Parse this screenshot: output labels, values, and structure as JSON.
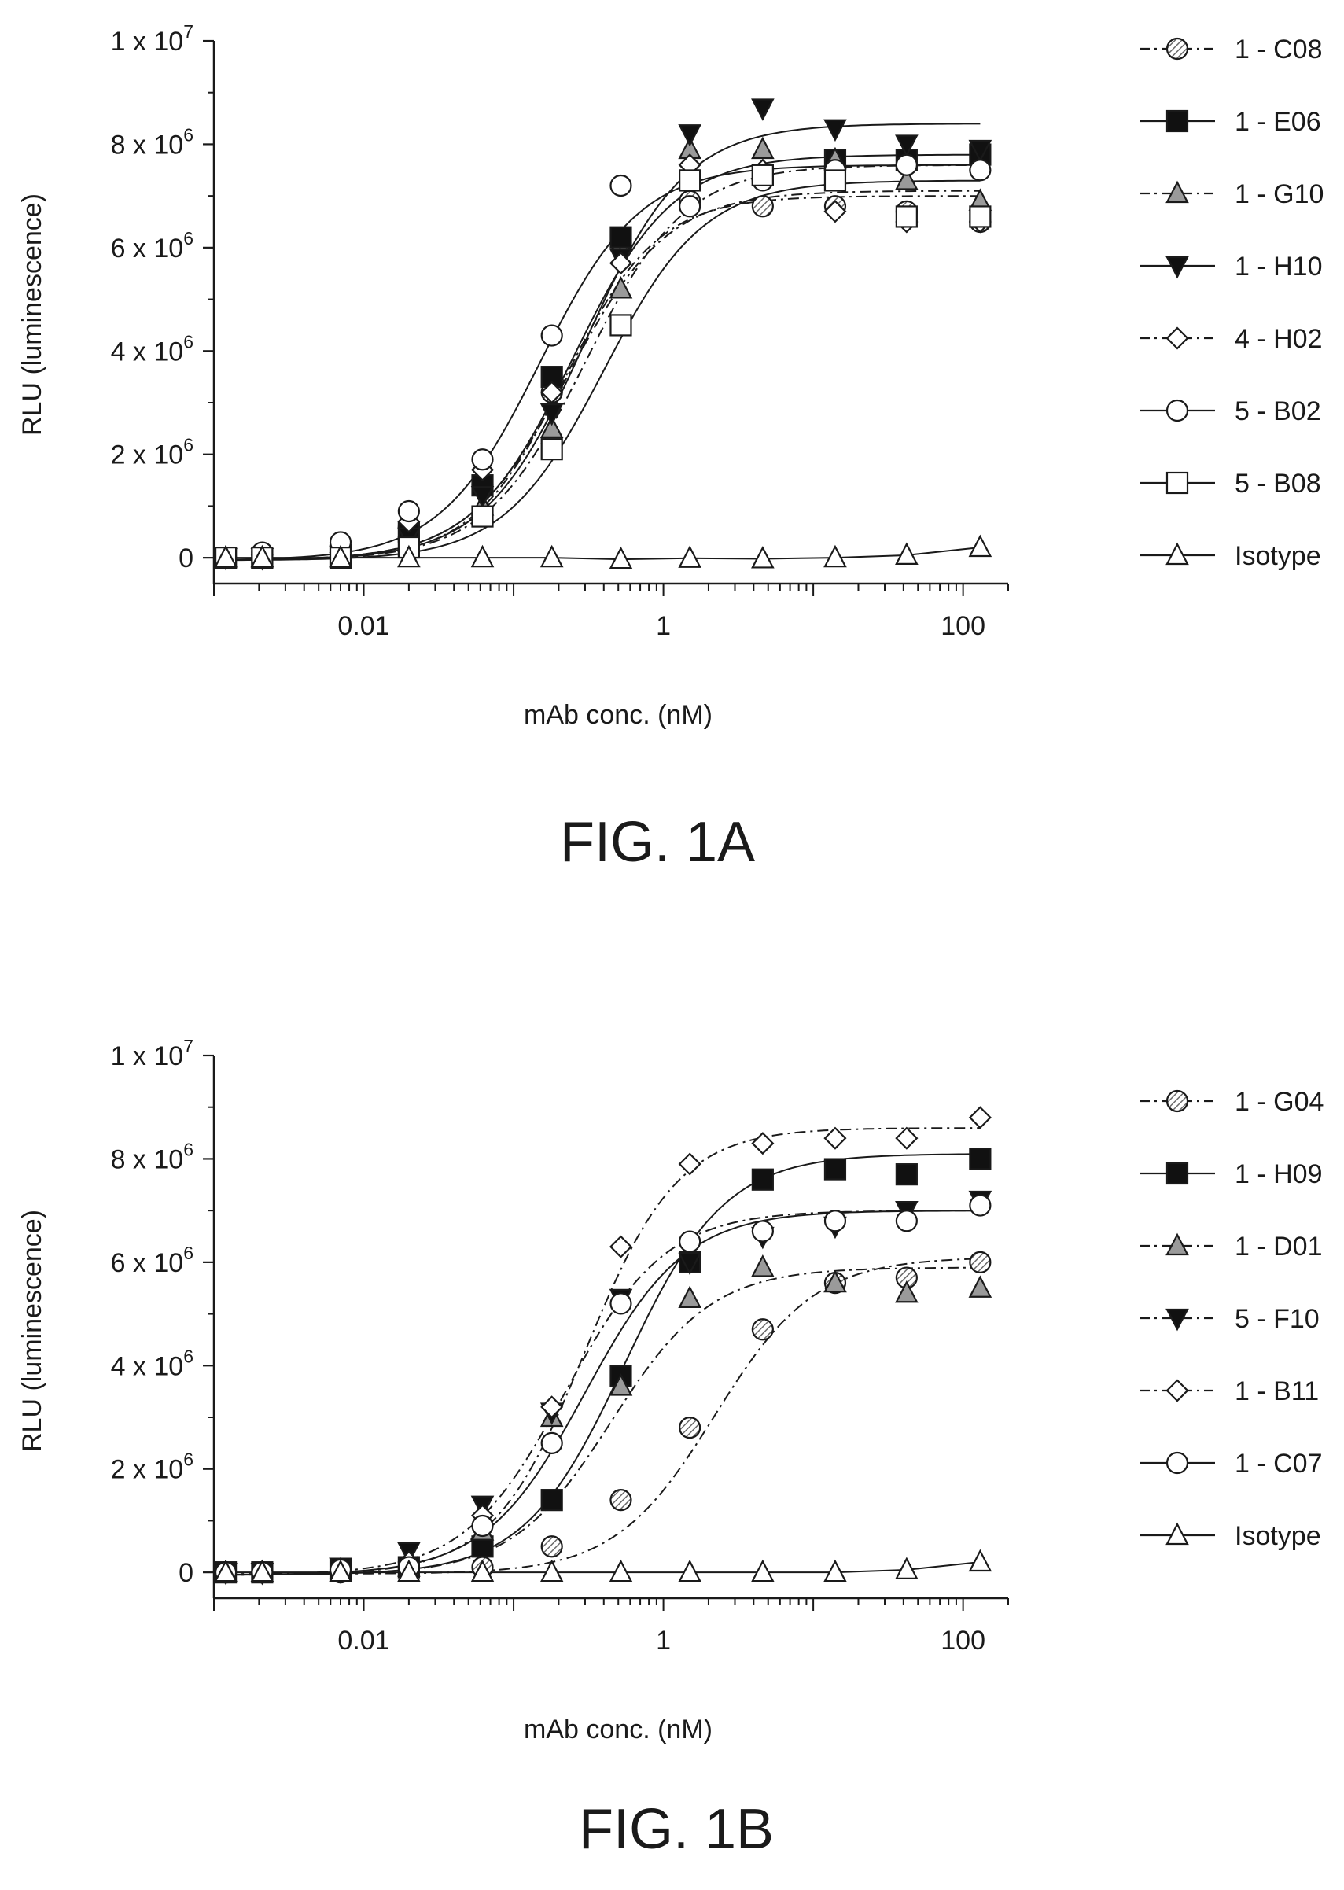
{
  "chart_data": [
    {
      "type": "scatter",
      "caption": "FIG. 1A",
      "xlabel": "mAb conc. (nM)",
      "ylabel": "RLU (luminescence)",
      "x_scale": "log",
      "xlim": [
        0.001,
        200
      ],
      "ylim": [
        -500000,
        10000000
      ],
      "x_ticks": [
        {
          "value": 0.01,
          "label": "0.01"
        },
        {
          "value": 1,
          "label": "1"
        },
        {
          "value": 100,
          "label": "100"
        }
      ],
      "y_ticks": [
        {
          "value": 0,
          "label": "0",
          "exp": ""
        },
        {
          "value": 2000000,
          "label": "2 x 10",
          "exp": "6"
        },
        {
          "value": 4000000,
          "label": "4 x 10",
          "exp": "6"
        },
        {
          "value": 6000000,
          "label": "6 x 10",
          "exp": "6"
        },
        {
          "value": 8000000,
          "label": "8 x 10",
          "exp": "6"
        },
        {
          "value": 10000000,
          "label": "1 x 10",
          "exp": "7"
        }
      ],
      "legend_position": "right",
      "x": [
        0.0012,
        0.0021,
        0.007,
        0.02,
        0.062,
        0.18,
        0.52,
        1.5,
        4.6,
        14,
        42,
        130
      ],
      "series": [
        {
          "name": "1 - C08",
          "marker": "circle",
          "fill": "hatched",
          "line": "dash-dot",
          "values": [
            0,
            50000,
            100000,
            600000,
            1400000,
            3200000,
            6100000,
            6900000,
            6800000,
            6800000,
            6700000,
            6500000
          ],
          "fit": {
            "bottom": -50000,
            "top": 7000000,
            "ec50": 0.22,
            "hill": 1.4
          }
        },
        {
          "name": "1 - E06",
          "marker": "square",
          "fill": "black",
          "line": "solid",
          "values": [
            0,
            0,
            50000,
            500000,
            1400000,
            3500000,
            6200000,
            7300000,
            7400000,
            7700000,
            7700000,
            7800000
          ],
          "fit": {
            "bottom": -50000,
            "top": 7800000,
            "ec50": 0.25,
            "hill": 1.3
          }
        },
        {
          "name": "1 - G10",
          "marker": "triangle-up",
          "fill": "gray",
          "line": "dash-dot",
          "values": [
            0,
            0,
            0,
            300000,
            1000000,
            2500000,
            5200000,
            7900000,
            7900000,
            7700000,
            7300000,
            6900000
          ],
          "fit": {
            "bottom": -50000,
            "top": 7600000,
            "ec50": 0.3,
            "hill": 1.3
          }
        },
        {
          "name": "1 - H10",
          "marker": "triangle-down",
          "fill": "black",
          "line": "solid",
          "values": [
            0,
            0,
            50000,
            400000,
            1200000,
            2800000,
            5800000,
            8200000,
            8700000,
            8300000,
            8000000,
            7900000
          ],
          "fit": {
            "bottom": -50000,
            "top": 8400000,
            "ec50": 0.3,
            "hill": 1.3
          }
        },
        {
          "name": "4 - H02",
          "marker": "diamond",
          "fill": "white",
          "line": "dash-dot",
          "values": [
            0,
            50000,
            100000,
            700000,
            1700000,
            3200000,
            5700000,
            7600000,
            7500000,
            6700000,
            6500000,
            6500000
          ],
          "fit": {
            "bottom": -50000,
            "top": 7100000,
            "ec50": 0.23,
            "hill": 1.3
          }
        },
        {
          "name": "5 - B02",
          "marker": "circle",
          "fill": "white",
          "line": "solid",
          "values": [
            0,
            100000,
            300000,
            900000,
            1900000,
            4300000,
            7200000,
            6800000,
            7300000,
            7500000,
            7600000,
            7500000
          ],
          "fit": {
            "bottom": -50000,
            "top": 7600000,
            "ec50": 0.15,
            "hill": 1.3
          }
        },
        {
          "name": "5 - B08",
          "marker": "square",
          "fill": "white",
          "line": "solid",
          "values": [
            0,
            0,
            0,
            200000,
            800000,
            2100000,
            4500000,
            7300000,
            7400000,
            7300000,
            6600000,
            6600000
          ],
          "fit": {
            "bottom": -50000,
            "top": 7300000,
            "ec50": 0.4,
            "hill": 1.3
          }
        },
        {
          "name": "Isotype",
          "marker": "triangle-up",
          "fill": "white",
          "line": "solid",
          "values": [
            0,
            0,
            0,
            0,
            0,
            0,
            -30000,
            -10000,
            -20000,
            0,
            50000,
            200000
          ],
          "fit": null
        }
      ]
    },
    {
      "type": "scatter",
      "caption": "FIG. 1B",
      "xlabel": "mAb conc. (nM)",
      "ylabel": "RLU (luminescence)",
      "x_scale": "log",
      "xlim": [
        0.001,
        200
      ],
      "ylim": [
        -500000,
        10000000
      ],
      "x_ticks": [
        {
          "value": 0.01,
          "label": "0.01"
        },
        {
          "value": 1,
          "label": "1"
        },
        {
          "value": 100,
          "label": "100"
        }
      ],
      "y_ticks": [
        {
          "value": 0,
          "label": "0",
          "exp": ""
        },
        {
          "value": 2000000,
          "label": "2 x 10",
          "exp": "6"
        },
        {
          "value": 4000000,
          "label": "4 x 10",
          "exp": "6"
        },
        {
          "value": 6000000,
          "label": "6 x 10",
          "exp": "6"
        },
        {
          "value": 8000000,
          "label": "8 x 10",
          "exp": "6"
        },
        {
          "value": 10000000,
          "label": "1 x 10",
          "exp": "7"
        }
      ],
      "legend_position": "right",
      "x": [
        0.0012,
        0.0021,
        0.007,
        0.02,
        0.062,
        0.18,
        0.52,
        1.5,
        4.6,
        14,
        42,
        130
      ],
      "series": [
        {
          "name": "1 - G04",
          "marker": "circle",
          "fill": "hatched",
          "line": "dash-dot",
          "values": [
            0,
            0,
            0,
            50000,
            100000,
            500000,
            1400000,
            2800000,
            4700000,
            5600000,
            5700000,
            6000000
          ],
          "fit": {
            "bottom": -30000,
            "top": 6100000,
            "ec50": 2.2,
            "hill": 1.3
          }
        },
        {
          "name": "1 - H09",
          "marker": "square",
          "fill": "black",
          "line": "solid",
          "values": [
            0,
            0,
            50000,
            100000,
            500000,
            1400000,
            3800000,
            6000000,
            7600000,
            7800000,
            7700000,
            8000000
          ],
          "fit": {
            "bottom": -50000,
            "top": 8100000,
            "ec50": 0.55,
            "hill": 1.3
          }
        },
        {
          "name": "1 - D01",
          "marker": "triangle-up",
          "fill": "gray",
          "line": "dash-dot",
          "values": [
            0,
            0,
            50000,
            100000,
            800000,
            3000000,
            3600000,
            5300000,
            5900000,
            5600000,
            5400000,
            5500000
          ],
          "fit": {
            "bottom": -50000,
            "top": 5900000,
            "ec50": 0.45,
            "hill": 1.3
          }
        },
        {
          "name": "5 - F10",
          "marker": "triangle-down",
          "fill": "black",
          "line": "dash-dot",
          "values": [
            0,
            0,
            100000,
            400000,
            1300000,
            3100000,
            5300000,
            6000000,
            6500000,
            6700000,
            7000000,
            7200000
          ],
          "fit": {
            "bottom": -50000,
            "top": 7000000,
            "ec50": 0.22,
            "hill": 1.3
          }
        },
        {
          "name": "1 - B11",
          "marker": "diamond",
          "fill": "white",
          "line": "dash-dot",
          "values": [
            0,
            0,
            0,
            200000,
            1100000,
            3200000,
            6300000,
            7900000,
            8300000,
            8400000,
            8400000,
            8800000
          ],
          "fit": {
            "bottom": -50000,
            "top": 8600000,
            "ec50": 0.3,
            "hill": 1.4
          }
        },
        {
          "name": "1 - C07",
          "marker": "circle",
          "fill": "white",
          "line": "solid",
          "values": [
            0,
            0,
            50000,
            100000,
            900000,
            2500000,
            5200000,
            6400000,
            6600000,
            6800000,
            6800000,
            7100000
          ],
          "fit": {
            "bottom": -50000,
            "top": 7000000,
            "ec50": 0.3,
            "hill": 1.3
          }
        },
        {
          "name": "Isotype",
          "marker": "triangle-up",
          "fill": "white",
          "line": "solid",
          "values": [
            0,
            0,
            0,
            0,
            0,
            0,
            0,
            0,
            0,
            0,
            50000,
            200000
          ],
          "fit": null
        }
      ]
    }
  ]
}
